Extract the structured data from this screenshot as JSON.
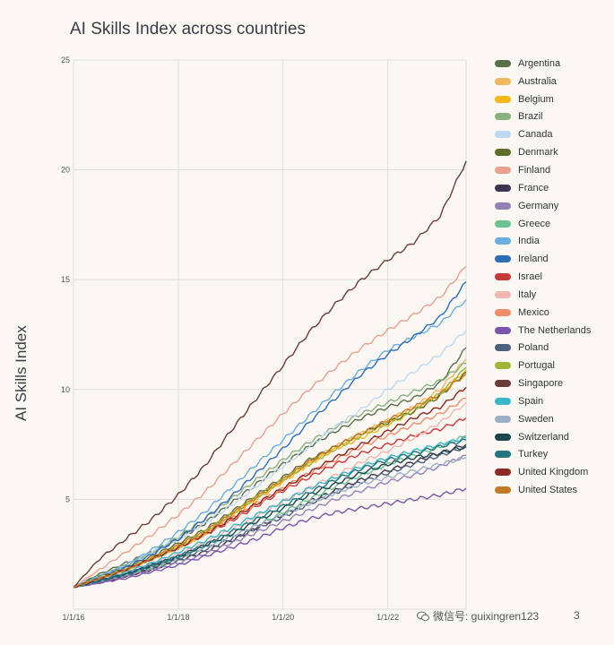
{
  "chart_data": {
    "type": "line",
    "title": "AI Skills Index across countries",
    "ylabel": "AI Skills Index",
    "xlabel": "",
    "xlim": [
      "2016-01-01",
      "2023-07-01"
    ],
    "ylim": [
      0,
      25
    ],
    "yticks": [
      5,
      10,
      15,
      20,
      25
    ],
    "xticks": [
      "2016-01-01",
      "2018-01-01",
      "2020-01-01",
      "2022-01-01"
    ],
    "xtick_labels": [
      "1/1/16",
      "1/1/18",
      "1/1/20",
      "1/1/22"
    ],
    "grid": true,
    "legend_position": "right",
    "x": [
      "2016-01-01",
      "2016-07-01",
      "2017-01-01",
      "2017-07-01",
      "2018-01-01",
      "2018-07-01",
      "2019-01-01",
      "2019-07-01",
      "2020-01-01",
      "2020-07-01",
      "2021-01-01",
      "2021-07-01",
      "2022-01-01",
      "2022-07-01",
      "2023-01-01",
      "2023-07-01"
    ],
    "series": [
      {
        "name": "Argentina",
        "color": "#5a6e4a",
        "values": [
          1.0,
          1.6,
          2.1,
          2.6,
          3.2,
          3.9,
          4.8,
          5.7,
          6.6,
          7.4,
          8.1,
          8.7,
          9.2,
          9.6,
          10.3,
          11.9
        ]
      },
      {
        "name": "Australia",
        "color": "#f0b860",
        "values": [
          1.0,
          1.4,
          1.8,
          2.3,
          2.9,
          3.5,
          4.3,
          5.1,
          5.9,
          6.7,
          7.4,
          8.0,
          8.6,
          9.2,
          10.0,
          11.4
        ]
      },
      {
        "name": "Belgium",
        "color": "#f3b81c",
        "values": [
          1.0,
          1.4,
          1.8,
          2.3,
          2.8,
          3.4,
          4.2,
          5.0,
          5.8,
          6.6,
          7.3,
          7.8,
          8.4,
          9.0,
          9.8,
          10.9
        ]
      },
      {
        "name": "Brazil",
        "color": "#8ab080",
        "values": [
          1.0,
          1.5,
          2.0,
          2.6,
          3.3,
          4.1,
          5.0,
          5.9,
          6.8,
          7.6,
          8.3,
          8.9,
          9.4,
          9.9,
          10.4,
          11.2
        ]
      },
      {
        "name": "Canada",
        "color": "#bdd9f0",
        "values": [
          1.0,
          1.5,
          2.0,
          2.6,
          3.2,
          3.9,
          4.7,
          5.6,
          6.5,
          7.4,
          8.3,
          9.1,
          10.0,
          10.8,
          11.6,
          12.7
        ]
      },
      {
        "name": "Denmark",
        "color": "#5e6e2a",
        "values": [
          1.0,
          1.5,
          1.9,
          2.4,
          3.0,
          3.6,
          4.4,
          5.2,
          6.0,
          6.8,
          7.4,
          8.0,
          8.5,
          9.0,
          9.7,
          10.8
        ]
      },
      {
        "name": "Finland",
        "color": "#e8a090",
        "values": [
          1.0,
          1.8,
          2.6,
          3.4,
          4.3,
          5.3,
          6.5,
          7.7,
          8.9,
          10.0,
          11.0,
          11.9,
          12.7,
          13.4,
          14.2,
          15.6
        ]
      },
      {
        "name": "France",
        "color": "#3d3550",
        "values": [
          1.0,
          1.2,
          1.5,
          1.8,
          2.2,
          2.6,
          3.1,
          3.7,
          4.3,
          4.9,
          5.4,
          5.9,
          6.3,
          6.7,
          7.1,
          7.5
        ]
      },
      {
        "name": "Germany",
        "color": "#9580b5",
        "values": [
          1.0,
          1.2,
          1.5,
          1.8,
          2.1,
          2.5,
          3.0,
          3.5,
          4.0,
          4.5,
          5.0,
          5.4,
          5.8,
          6.1,
          6.5,
          7.0
        ]
      },
      {
        "name": "Greece",
        "color": "#6cc390",
        "values": [
          1.0,
          1.3,
          1.6,
          1.9,
          2.3,
          2.8,
          3.3,
          3.8,
          4.4,
          5.0,
          5.6,
          6.1,
          6.6,
          7.0,
          7.4,
          7.9
        ]
      },
      {
        "name": "India",
        "color": "#6aaede",
        "values": [
          1.0,
          1.5,
          2.0,
          2.7,
          3.5,
          4.4,
          5.5,
          6.6,
          7.7,
          8.8,
          9.9,
          10.9,
          11.8,
          12.4,
          13.0,
          14.1
        ]
      },
      {
        "name": "Ireland",
        "color": "#2f6db5",
        "values": [
          1.0,
          1.4,
          1.9,
          2.5,
          3.2,
          4.1,
          5.1,
          6.2,
          7.3,
          8.5,
          9.6,
          10.7,
          11.6,
          12.4,
          13.3,
          14.9
        ]
      },
      {
        "name": "Israel",
        "color": "#c9393a",
        "values": [
          1.0,
          1.4,
          1.8,
          2.3,
          2.8,
          3.4,
          4.0,
          4.7,
          5.4,
          6.0,
          6.6,
          7.1,
          7.5,
          7.9,
          8.2,
          8.7
        ]
      },
      {
        "name": "Italy",
        "color": "#f5b5b0",
        "values": [
          1.0,
          1.3,
          1.7,
          2.1,
          2.5,
          3.0,
          3.6,
          4.2,
          4.9,
          5.5,
          6.1,
          6.7,
          7.2,
          7.8,
          8.5,
          9.4
        ]
      },
      {
        "name": "Mexico",
        "color": "#ef8c6a",
        "values": [
          1.0,
          1.4,
          1.8,
          2.3,
          2.8,
          3.4,
          4.1,
          4.8,
          5.5,
          6.2,
          6.8,
          7.4,
          7.9,
          8.4,
          8.9,
          9.6
        ]
      },
      {
        "name": "The Netherlands",
        "color": "#7b55aa",
        "values": [
          1.0,
          1.2,
          1.4,
          1.7,
          2.0,
          2.4,
          2.8,
          3.2,
          3.7,
          4.1,
          4.4,
          4.6,
          4.8,
          5.0,
          5.2,
          5.5
        ]
      },
      {
        "name": "Poland",
        "color": "#4e5f7e",
        "values": [
          1.0,
          1.3,
          1.6,
          1.9,
          2.3,
          2.7,
          3.2,
          3.7,
          4.2,
          4.8,
          5.3,
          5.8,
          6.2,
          6.6,
          7.0,
          7.4
        ]
      },
      {
        "name": "Portugal",
        "color": "#9eb53a",
        "values": [
          1.0,
          1.4,
          1.8,
          2.3,
          2.8,
          3.5,
          4.3,
          5.1,
          5.9,
          6.6,
          7.3,
          7.9,
          8.5,
          9.1,
          9.8,
          11.0
        ]
      },
      {
        "name": "Singapore",
        "color": "#6b3d38",
        "values": [
          1.0,
          2.3,
          3.2,
          4.1,
          5.2,
          6.5,
          8.1,
          9.6,
          11.1,
          12.6,
          13.9,
          15.0,
          15.9,
          16.7,
          17.9,
          20.4
        ]
      },
      {
        "name": "Spain",
        "color": "#3bb5c8",
        "values": [
          1.0,
          1.3,
          1.7,
          2.1,
          2.6,
          3.1,
          3.7,
          4.3,
          4.9,
          5.5,
          6.0,
          6.5,
          6.9,
          7.2,
          7.5,
          7.8
        ]
      },
      {
        "name": "Sweden",
        "color": "#9bb0c6",
        "values": [
          1.0,
          1.3,
          1.6,
          2.0,
          2.4,
          2.8,
          3.3,
          3.8,
          4.3,
          4.8,
          5.3,
          5.7,
          6.0,
          6.3,
          6.6,
          6.9
        ]
      },
      {
        "name": "Switzerland",
        "color": "#1c4550",
        "values": [
          1.0,
          1.3,
          1.6,
          2.0,
          2.4,
          2.9,
          3.4,
          4.0,
          4.6,
          5.2,
          5.7,
          6.2,
          6.6,
          6.9,
          7.1,
          7.4
        ]
      },
      {
        "name": "Turkey",
        "color": "#237680",
        "values": [
          1.0,
          1.3,
          1.6,
          2.0,
          2.4,
          2.9,
          3.5,
          4.1,
          4.7,
          5.3,
          5.9,
          6.4,
          6.8,
          7.1,
          7.4,
          7.7
        ]
      },
      {
        "name": "United Kingdom",
        "color": "#8a2a22",
        "values": [
          1.0,
          1.4,
          1.8,
          2.3,
          2.8,
          3.4,
          4.1,
          4.8,
          5.5,
          6.2,
          6.9,
          7.5,
          8.1,
          8.7,
          9.2,
          10.1
        ]
      },
      {
        "name": "United States",
        "color": "#c47a28",
        "values": [
          1.0,
          1.4,
          1.8,
          2.3,
          2.9,
          3.5,
          4.3,
          5.1,
          5.9,
          6.7,
          7.4,
          8.0,
          8.6,
          9.2,
          9.8,
          10.7
        ]
      }
    ]
  },
  "watermark": {
    "text": "微信号: guixingren123"
  },
  "page": {
    "number": "3"
  }
}
